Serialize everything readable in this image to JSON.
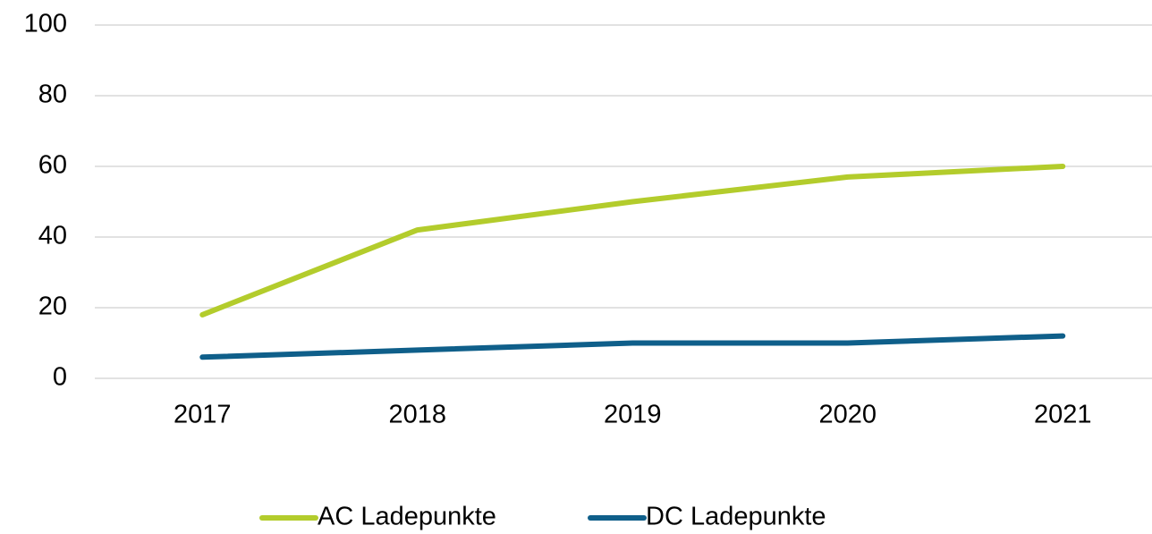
{
  "chart_data": {
    "type": "line",
    "categories": [
      "2017",
      "2018",
      "2019",
      "2020",
      "2021"
    ],
    "series": [
      {
        "name": "AC Ladepunkte",
        "color": "#b3cc2c",
        "values": [
          18,
          42,
          50,
          57,
          60
        ]
      },
      {
        "name": "DC Ladepunkte",
        "color": "#0f5f8a",
        "values": [
          6,
          8,
          10,
          10,
          12
        ]
      }
    ],
    "ylim": [
      0,
      100
    ],
    "yticks": [
      0,
      20,
      40,
      60,
      80,
      100
    ],
    "grid": true,
    "legend": "bottom"
  }
}
